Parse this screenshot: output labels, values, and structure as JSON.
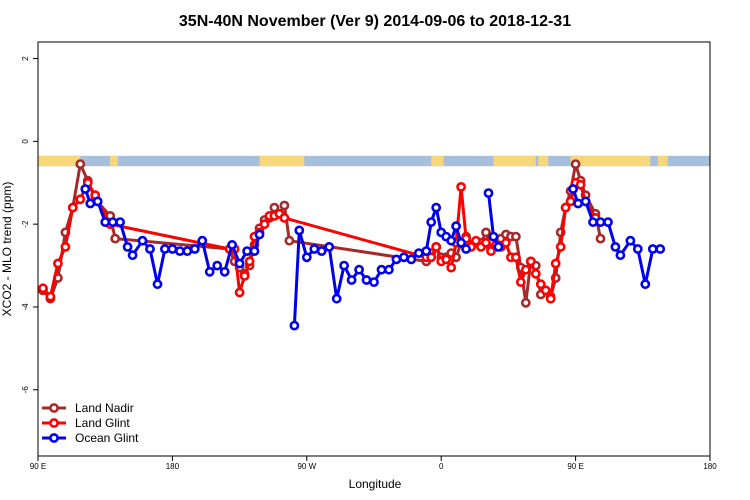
{
  "chart_data": {
    "type": "line",
    "title": "35N-40N November (Ver 9)   2014-09-06 to 2018-12-31",
    "xlabel": "Longitude",
    "ylabel": "XCO2 - MLO trend (ppm)",
    "xlim": [
      -90,
      180
    ],
    "ylim": [
      -7.6,
      2.4
    ],
    "x_ticks": [
      {
        "value": -90,
        "label": "90 E"
      },
      {
        "value": -36,
        "label": "180"
      },
      {
        "value": 18,
        "label": "90 W"
      },
      {
        "value": 72,
        "label": "0"
      },
      {
        "value": 126,
        "label": "90 E"
      },
      {
        "value": 180,
        "label": "180"
      }
    ],
    "y_ticks": [
      {
        "value": 2,
        "label": "2"
      },
      {
        "value": 0,
        "label": "0"
      },
      {
        "value": -2,
        "label": "-2"
      },
      {
        "value": -4,
        "label": "-4"
      },
      {
        "value": -6,
        "label": "-6"
      }
    ],
    "landmask": {
      "y_top": -0.35,
      "y_bottom": -0.6,
      "land_color": "#f8d77a",
      "ocean_color": "#a7bedd",
      "land_ranges": [
        [
          -90,
          -73
        ],
        [
          -61,
          -58
        ],
        [
          -1,
          17
        ],
        [
          68,
          73
        ],
        [
          93,
          110
        ],
        [
          111,
          115
        ],
        [
          124,
          156
        ],
        [
          159,
          163
        ]
      ]
    },
    "legend": {
      "position": "bottom-left"
    },
    "series": [
      {
        "name": "Land Nadir",
        "color": "#a52a2a",
        "points": [
          [
            -88,
            -3.6
          ],
          [
            -85,
            -3.8
          ],
          [
            -82,
            -3.3
          ],
          [
            -79,
            -2.2
          ],
          [
            -76,
            -1.6
          ],
          [
            -73,
            -0.55
          ],
          [
            -70,
            -0.95
          ],
          [
            -67,
            -1.4
          ],
          [
            -61,
            -1.8
          ],
          [
            -59,
            -2.35
          ],
          [
            -13,
            -2.6
          ],
          [
            -11,
            -2.9
          ],
          [
            -9,
            -3.05
          ],
          [
            -7,
            -3.2
          ],
          [
            -5,
            -3.0
          ],
          [
            -3,
            -2.5
          ],
          [
            -1,
            -2.1
          ],
          [
            1,
            -1.9
          ],
          [
            3,
            -1.85
          ],
          [
            5,
            -1.6
          ],
          [
            7,
            -1.75
          ],
          [
            9,
            -1.55
          ],
          [
            11,
            -2.4
          ],
          [
            66,
            -2.9
          ],
          [
            68,
            -2.7
          ],
          [
            70,
            -2.55
          ],
          [
            72,
            -2.8
          ],
          [
            74,
            -2.8
          ],
          [
            76,
            -2.7
          ],
          [
            78,
            -2.8
          ],
          [
            80,
            -2.45
          ],
          [
            82,
            -2.3
          ],
          [
            84,
            -2.5
          ],
          [
            86,
            -2.45
          ],
          [
            88,
            -2.45
          ],
          [
            90,
            -2.2
          ],
          [
            92,
            -2.6
          ],
          [
            94,
            -2.55
          ],
          [
            96,
            -2.35
          ],
          [
            98,
            -2.25
          ],
          [
            100,
            -2.3
          ],
          [
            102,
            -2.3
          ],
          [
            104,
            -3.05
          ],
          [
            106,
            -3.9
          ],
          [
            108,
            -2.9
          ],
          [
            110,
            -3.0
          ],
          [
            112,
            -3.7
          ],
          [
            114,
            -3.6
          ],
          [
            116,
            -3.75
          ],
          [
            118,
            -3.3
          ],
          [
            120,
            -2.2
          ],
          [
            122,
            -1.6
          ],
          [
            124,
            -1.2
          ],
          [
            126,
            -0.55
          ],
          [
            128,
            -0.95
          ],
          [
            130,
            -1.3
          ],
          [
            134,
            -1.75
          ],
          [
            136,
            -2.35
          ]
        ]
      },
      {
        "name": "Land Glint",
        "color": "#ff0000",
        "points": [
          [
            -88,
            -3.55
          ],
          [
            -85,
            -3.75
          ],
          [
            -82,
            -2.95
          ],
          [
            -79,
            -2.55
          ],
          [
            -76,
            -1.6
          ],
          [
            -73,
            -1.4
          ],
          [
            -70,
            -1.0
          ],
          [
            -67,
            -1.3
          ],
          [
            -61,
            -2.0
          ],
          [
            -13,
            -2.6
          ],
          [
            -11,
            -2.6
          ],
          [
            -9,
            -3.65
          ],
          [
            -7,
            -3.25
          ],
          [
            -5,
            -2.9
          ],
          [
            -3,
            -2.3
          ],
          [
            -1,
            -2.2
          ],
          [
            1,
            -2.0
          ],
          [
            3,
            -1.8
          ],
          [
            5,
            -1.8
          ],
          [
            7,
            -1.75
          ],
          [
            9,
            -1.85
          ],
          [
            66,
            -2.8
          ],
          [
            68,
            -2.8
          ],
          [
            70,
            -2.55
          ],
          [
            72,
            -2.9
          ],
          [
            74,
            -2.85
          ],
          [
            76,
            -3.05
          ],
          [
            78,
            -2.45
          ],
          [
            80,
            -1.1
          ],
          [
            82,
            -2.35
          ],
          [
            84,
            -2.55
          ],
          [
            86,
            -2.4
          ],
          [
            88,
            -2.55
          ],
          [
            90,
            -2.45
          ],
          [
            92,
            -2.65
          ],
          [
            94,
            -2.5
          ],
          [
            96,
            -2.55
          ],
          [
            98,
            -2.45
          ],
          [
            100,
            -2.8
          ],
          [
            102,
            -2.8
          ],
          [
            104,
            -3.4
          ],
          [
            106,
            -3.1
          ],
          [
            108,
            -2.9
          ],
          [
            110,
            -3.2
          ],
          [
            112,
            -3.45
          ],
          [
            114,
            -3.6
          ],
          [
            116,
            -3.8
          ],
          [
            118,
            -2.95
          ],
          [
            120,
            -2.55
          ],
          [
            122,
            -1.6
          ],
          [
            124,
            -1.45
          ],
          [
            126,
            -1.0
          ],
          [
            128,
            -1.05
          ],
          [
            130,
            -1.45
          ],
          [
            134,
            -1.85
          ]
        ]
      },
      {
        "name": "Ocean Glint",
        "color": "#0000ee",
        "segments": [
          [
            [
              -71,
              -1.15
            ],
            [
              -69,
              -1.5
            ],
            [
              -66,
              -1.45
            ],
            [
              -63,
              -1.95
            ],
            [
              -60,
              -1.95
            ],
            [
              -57,
              -1.95
            ],
            [
              -54,
              -2.55
            ],
            [
              -52,
              -2.75
            ],
            [
              -48,
              -2.4
            ],
            [
              -45,
              -2.6
            ],
            [
              -42,
              -3.45
            ],
            [
              -39,
              -2.6
            ],
            [
              -36,
              -2.6
            ],
            [
              -33,
              -2.65
            ],
            [
              -30,
              -2.65
            ],
            [
              -27,
              -2.6
            ],
            [
              -24,
              -2.4
            ],
            [
              -21,
              -3.15
            ],
            [
              -18,
              -3.0
            ],
            [
              -15,
              -3.15
            ],
            [
              -12,
              -2.5
            ],
            [
              -9,
              -2.95
            ],
            [
              -6,
              -2.65
            ],
            [
              -3,
              -2.65
            ],
            [
              -1,
              -2.25
            ]
          ],
          [
            [
              13,
              -4.45
            ],
            [
              15,
              -2.15
            ],
            [
              18,
              -2.8
            ],
            [
              21,
              -2.6
            ],
            [
              24,
              -2.65
            ],
            [
              27,
              -2.55
            ],
            [
              30,
              -3.8
            ],
            [
              33,
              -3.0
            ],
            [
              36,
              -3.35
            ],
            [
              39,
              -3.1
            ],
            [
              42,
              -3.35
            ],
            [
              45,
              -3.4
            ],
            [
              48,
              -3.1
            ],
            [
              51,
              -3.1
            ],
            [
              54,
              -2.85
            ],
            [
              57,
              -2.8
            ],
            [
              60,
              -2.85
            ],
            [
              63,
              -2.7
            ],
            [
              66,
              -2.65
            ],
            [
              68,
              -1.95
            ],
            [
              70,
              -1.6
            ],
            [
              72,
              -2.2
            ],
            [
              74,
              -2.3
            ],
            [
              76,
              -2.4
            ],
            [
              78,
              -2.05
            ],
            [
              80,
              -2.45
            ],
            [
              82,
              -2.6
            ]
          ],
          [
            [
              91,
              -1.25
            ],
            [
              93,
              -2.3
            ],
            [
              95,
              -2.55
            ]
          ],
          [
            [
              125,
              -1.15
            ],
            [
              127,
              -1.5
            ],
            [
              130,
              -1.45
            ],
            [
              133,
              -1.95
            ],
            [
              136,
              -1.95
            ],
            [
              139,
              -1.95
            ],
            [
              142,
              -2.55
            ],
            [
              144,
              -2.75
            ],
            [
              148,
              -2.4
            ],
            [
              151,
              -2.6
            ],
            [
              154,
              -3.45
            ],
            [
              157,
              -2.6
            ],
            [
              160,
              -2.6
            ]
          ]
        ]
      }
    ]
  }
}
